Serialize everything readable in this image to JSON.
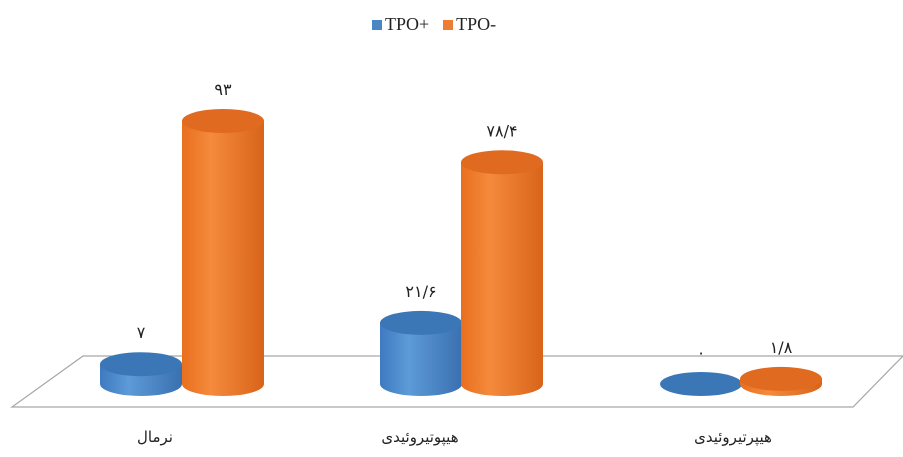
{
  "chart_data": {
    "type": "bar",
    "categories": [
      "نرمال",
      "هیپوتیروئیدی",
      "هیپرتیروئیدی"
    ],
    "series": [
      {
        "name": "TPO+",
        "values": [
          7,
          21.6,
          0
        ],
        "labels": [
          "۷",
          "۲۱/۶",
          "۰"
        ],
        "color": "#4a86c5"
      },
      {
        "name": "TPO-",
        "values": [
          93,
          78.4,
          1.8
        ],
        "labels": [
          "۹۳",
          "۷۸/۴",
          "۱/۸"
        ],
        "color": "#ed7d31"
      }
    ],
    "ylim": [
      0,
      100
    ],
    "grid": false,
    "legend_position": "top-center",
    "style": "3d-cylinder"
  }
}
